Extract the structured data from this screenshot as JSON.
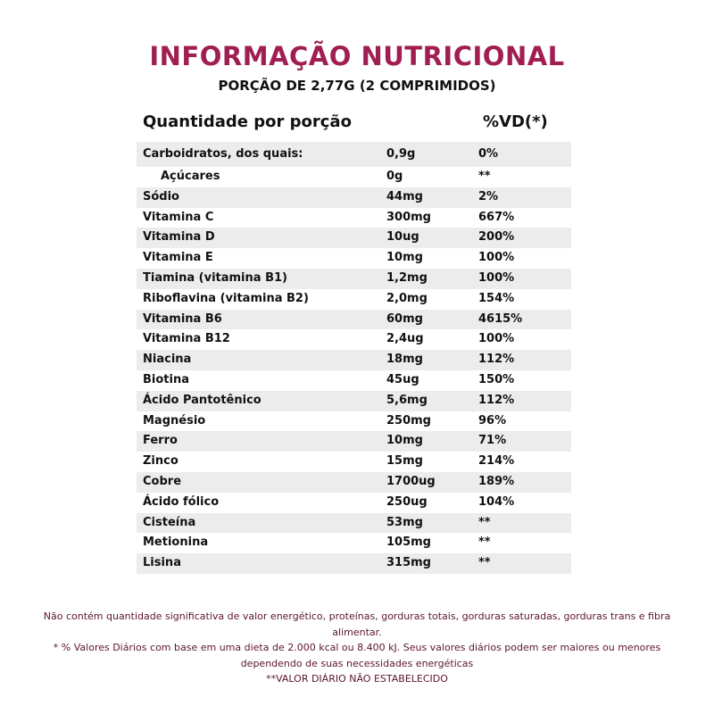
{
  "title": "INFORMAÇÃO NUTRICIONAL",
  "subtitle": "PORÇÃO DE 2,77G (2 COMPRIMIDOS)",
  "header": {
    "quantity_label": "Quantidade por porção",
    "vd_label": "%VD(*)"
  },
  "rows": [
    {
      "name": "Carboidratos, dos quais:",
      "amount": "0,9g",
      "vd": "0%"
    },
    {
      "name": "Açúcares",
      "amount": "0g",
      "vd": "**"
    },
    {
      "name": "Sódio",
      "amount": "44mg",
      "vd": "2%"
    },
    {
      "name": "Vitamina C",
      "amount": "300mg",
      "vd": "667%"
    },
    {
      "name": "Vitamina D",
      "amount": "10ug",
      "vd": "200%"
    },
    {
      "name": "Vitamina E",
      "amount": "10mg",
      "vd": "100%"
    },
    {
      "name": "Tiamina (vitamina B1)",
      "amount": "1,2mg",
      "vd": "100%"
    },
    {
      "name": "Riboflavina (vitamina B2)",
      "amount": "2,0mg",
      "vd": "154%"
    },
    {
      "name": "Vitamina B6",
      "amount": "60mg",
      "vd": "4615%"
    },
    {
      "name": "Vitamina B12",
      "amount": "2,4ug",
      "vd": "100%"
    },
    {
      "name": "Niacina",
      "amount": "18mg",
      "vd": "112%"
    },
    {
      "name": "Biotina",
      "amount": "45ug",
      "vd": "150%"
    },
    {
      "name": "Ácido Pantotênico",
      "amount": "5,6mg",
      "vd": "112%"
    },
    {
      "name": "Magnésio",
      "amount": "250mg",
      "vd": "96%"
    },
    {
      "name": "Ferro",
      "amount": "10mg",
      "vd": "71%"
    },
    {
      "name": "Zinco",
      "amount": "15mg",
      "vd": "214%"
    },
    {
      "name": "Cobre",
      "amount": "1700ug",
      "vd": "189%"
    },
    {
      "name": "Ácido fólico",
      "amount": "250ug",
      "vd": "104%"
    },
    {
      "name": "Cisteína",
      "amount": "53mg",
      "vd": "**"
    },
    {
      "name": "Metionina",
      "amount": "105mg",
      "vd": "**"
    },
    {
      "name": "Lisina",
      "amount": "315mg",
      "vd": "**"
    }
  ],
  "footer": {
    "line1": "Não contém quantidade significativa de valor energético, proteínas, gorduras totais, gorduras saturadas, gorduras trans e fibra alimentar.",
    "line2": "* % Valores Diários com base em uma dieta de 2.000 kcal ou 8.400 kJ. Seus valores diários podem ser maiores ou menores dependendo de suas necessidades energéticas",
    "line3": "**VALOR DIÁRIO NÃO ESTABELECIDO"
  },
  "colors": {
    "title": "#a01e52",
    "row_shade": "#ececec",
    "footer_text": "#5a1430"
  }
}
